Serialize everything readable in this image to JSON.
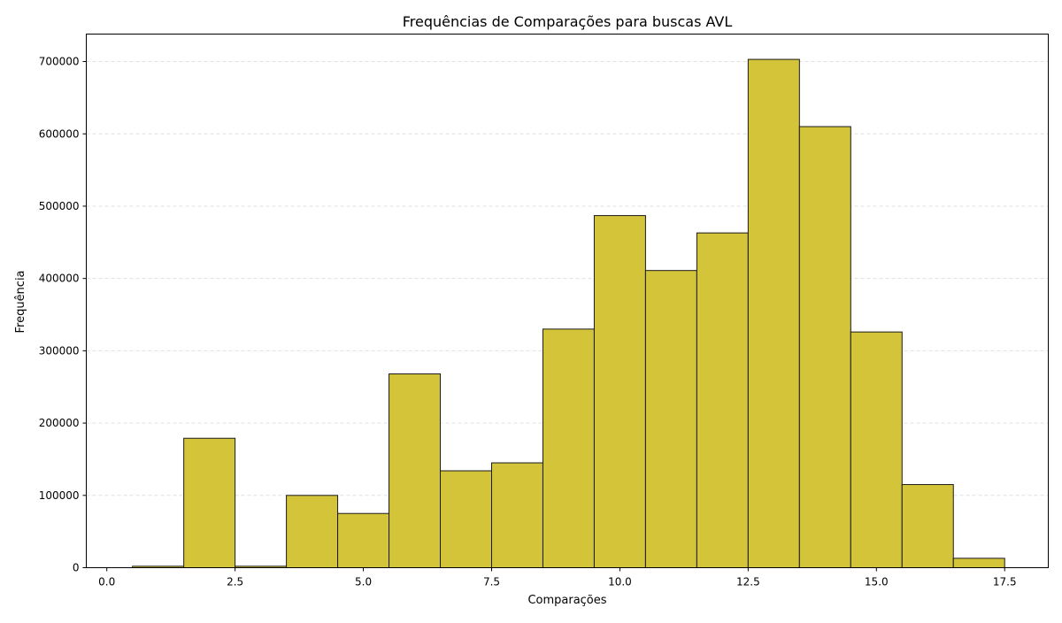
{
  "chart_data": {
    "type": "bar",
    "title": "Frequências de Comparações para buscas AVL",
    "xlabel": "Comparações",
    "ylabel": "Frequência",
    "bin_width": 1,
    "bins": [
      {
        "x": 1,
        "value": 2000
      },
      {
        "x": 2,
        "value": 179000
      },
      {
        "x": 3,
        "value": 2000
      },
      {
        "x": 4,
        "value": 100000
      },
      {
        "x": 5,
        "value": 75000
      },
      {
        "x": 6,
        "value": 268000
      },
      {
        "x": 7,
        "value": 134000
      },
      {
        "x": 8,
        "value": 145000
      },
      {
        "x": 9,
        "value": 330000
      },
      {
        "x": 10,
        "value": 487000
      },
      {
        "x": 11,
        "value": 411000
      },
      {
        "x": 12,
        "value": 463000
      },
      {
        "x": 13,
        "value": 703000
      },
      {
        "x": 14,
        "value": 610000
      },
      {
        "x": 15,
        "value": 326000
      },
      {
        "x": 16,
        "value": 115000
      },
      {
        "x": 17,
        "value": 13000
      }
    ],
    "xlim": [
      -0.4,
      18.35
    ],
    "ylim": [
      0,
      738000
    ],
    "x_ticks": [
      0.0,
      2.5,
      5.0,
      7.5,
      10.0,
      12.5,
      15.0,
      17.5
    ],
    "x_tick_labels": [
      "0.0",
      "2.5",
      "5.0",
      "7.5",
      "10.0",
      "12.5",
      "15.0",
      "17.5"
    ],
    "y_ticks": [
      0,
      100000,
      200000,
      300000,
      400000,
      500000,
      600000,
      700000
    ],
    "y_tick_labels": [
      "0",
      "100000",
      "200000",
      "300000",
      "400000",
      "500000",
      "600000",
      "700000"
    ],
    "grid": {
      "y": true,
      "x": false,
      "style": "dashed"
    },
    "colors": {
      "bar_fill": "#d4c43a",
      "bar_edge": "#1a1a1a",
      "grid": "#e0e0e0"
    }
  }
}
